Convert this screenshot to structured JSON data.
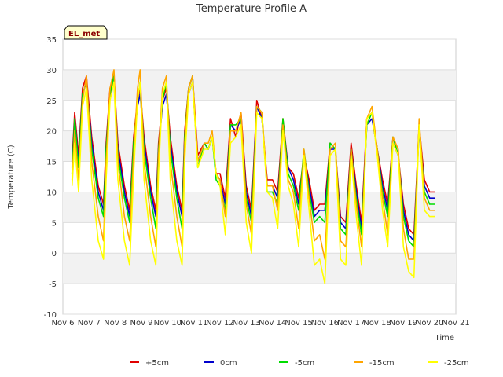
{
  "chart_data": {
    "type": "line",
    "title": "Temperature Profile A",
    "xlabel": "Time",
    "ylabel": "Temperature (C)",
    "badge": "EL_met",
    "ylim": [
      -10,
      35
    ],
    "yticks": [
      -10,
      -5,
      0,
      5,
      10,
      15,
      20,
      25,
      30,
      35
    ],
    "xlim": [
      6,
      21
    ],
    "xticks": [
      {
        "value": 6,
        "label": "Nov 6"
      },
      {
        "value": 7,
        "label": "Nov 7"
      },
      {
        "value": 8,
        "label": "Nov 8"
      },
      {
        "value": 9,
        "label": "Nov 9"
      },
      {
        "value": 10,
        "label": "Nov 10"
      },
      {
        "value": 11,
        "label": "Nov 11"
      },
      {
        "value": 12,
        "label": "Nov 12"
      },
      {
        "value": 13,
        "label": "Nov 13"
      },
      {
        "value": 14,
        "label": "Nov 14"
      },
      {
        "value": 15,
        "label": "Nov 15"
      },
      {
        "value": 16,
        "label": "Nov 16"
      },
      {
        "value": 17,
        "label": "Nov 17"
      },
      {
        "value": 18,
        "label": "Nov 18"
      },
      {
        "value": 19,
        "label": "Nov 19"
      },
      {
        "value": 20,
        "label": "Nov 20"
      },
      {
        "value": 21,
        "label": "Nov 21"
      }
    ],
    "grid": true,
    "legend_position": "bottom",
    "series": [
      {
        "name": "+5cm",
        "color": "#e00000",
        "x": [
          6.35,
          6.45,
          6.6,
          6.75,
          6.9,
          7.1,
          7.35,
          7.55,
          7.65,
          7.8,
          7.95,
          8.1,
          8.35,
          8.55,
          8.7,
          8.85,
          8.95,
          9.1,
          9.35,
          9.55,
          9.65,
          9.8,
          9.95,
          10.1,
          10.35,
          10.55,
          10.65,
          10.8,
          10.95,
          11.15,
          11.4,
          11.55,
          11.7,
          11.85,
          12.0,
          12.2,
          12.4,
          12.6,
          12.8,
          13.0,
          13.2,
          13.4,
          13.6,
          13.8,
          14.0,
          14.2,
          14.4,
          14.6,
          14.8,
          15.0,
          15.2,
          15.4,
          15.6,
          15.8,
          16.0,
          16.2,
          16.4,
          16.6,
          16.8,
          17.0,
          17.2,
          17.4,
          17.6,
          17.8,
          18.0,
          18.2,
          18.4,
          18.6,
          18.8,
          19.0,
          19.2,
          19.4,
          19.6,
          19.8,
          20.0,
          20.2
        ],
        "y": [
          15,
          23,
          16,
          27,
          29,
          19,
          11,
          8,
          18,
          27,
          29,
          18,
          11,
          7,
          19,
          25,
          27,
          19,
          11,
          7,
          18,
          25,
          27,
          19,
          11,
          7,
          20,
          27,
          29,
          16,
          18,
          17,
          19,
          13,
          13,
          9,
          22,
          19,
          23,
          11,
          7,
          25,
          22,
          12,
          12,
          10,
          22,
          14,
          13,
          9,
          16,
          12,
          7,
          8,
          8,
          18,
          17,
          6,
          5,
          18,
          11,
          5,
          22,
          23,
          17,
          12,
          8,
          19,
          16,
          8,
          4,
          3,
          21,
          12,
          10,
          10
        ]
      },
      {
        "name": "0cm",
        "color": "#0000cc",
        "x": [
          6.35,
          6.45,
          6.6,
          6.75,
          6.9,
          7.1,
          7.35,
          7.55,
          7.65,
          7.8,
          7.95,
          8.1,
          8.35,
          8.55,
          8.7,
          8.85,
          8.95,
          9.1,
          9.35,
          9.55,
          9.65,
          9.8,
          9.95,
          10.1,
          10.35,
          10.55,
          10.65,
          10.8,
          10.95,
          11.15,
          11.4,
          11.55,
          11.7,
          11.85,
          12.0,
          12.2,
          12.4,
          12.6,
          12.8,
          13.0,
          13.2,
          13.4,
          13.6,
          13.8,
          14.0,
          14.2,
          14.4,
          14.6,
          14.8,
          15.0,
          15.2,
          15.4,
          15.6,
          15.8,
          16.0,
          16.2,
          16.4,
          16.6,
          16.8,
          17.0,
          17.2,
          17.4,
          17.6,
          17.8,
          18.0,
          18.2,
          18.4,
          18.6,
          18.8,
          19.0,
          19.2,
          19.4,
          19.6,
          19.8,
          20.0,
          20.2
        ],
        "y": [
          14,
          22,
          15,
          26,
          28,
          18,
          10,
          7,
          17,
          26,
          28,
          17,
          10,
          6,
          18,
          24,
          26,
          18,
          10,
          6,
          17,
          24,
          26,
          18,
          10,
          6,
          19,
          26,
          28,
          15,
          18,
          17,
          19,
          13,
          12,
          8,
          21,
          20,
          22,
          10,
          6,
          24,
          22,
          11,
          11,
          9,
          21,
          14,
          12,
          8,
          16,
          11,
          6,
          7,
          7,
          17,
          17,
          5,
          4,
          17,
          10,
          4,
          21,
          22,
          17,
          11,
          7,
          18,
          16,
          7,
          3,
          2,
          20,
          11,
          9,
          9
        ]
      },
      {
        "name": "-5cm",
        "color": "#00dd00",
        "x": [
          6.35,
          6.45,
          6.6,
          6.75,
          6.9,
          7.1,
          7.35,
          7.55,
          7.65,
          7.8,
          7.95,
          8.1,
          8.35,
          8.55,
          8.7,
          8.85,
          8.95,
          9.1,
          9.35,
          9.55,
          9.65,
          9.8,
          9.95,
          10.1,
          10.35,
          10.55,
          10.65,
          10.8,
          10.95,
          11.15,
          11.4,
          11.55,
          11.7,
          11.85,
          12.0,
          12.2,
          12.4,
          12.6,
          12.8,
          13.0,
          13.2,
          13.4,
          13.6,
          13.8,
          14.0,
          14.2,
          14.4,
          14.6,
          14.8,
          15.0,
          15.2,
          15.4,
          15.6,
          15.8,
          16.0,
          16.2,
          16.4,
          16.6,
          16.8,
          17.0,
          17.2,
          17.4,
          17.6,
          17.8,
          18.0,
          18.2,
          18.4,
          18.6,
          18.8,
          19.0,
          19.2,
          19.4,
          19.6,
          19.8,
          20.0,
          20.2
        ],
        "y": [
          13,
          22,
          14,
          26,
          28,
          17,
          9,
          6,
          17,
          26,
          29,
          16,
          9,
          5,
          18,
          25,
          28,
          17,
          9,
          4,
          17,
          25,
          28,
          17,
          9,
          4,
          19,
          27,
          29,
          14,
          18,
          17,
          19,
          12,
          11,
          7,
          21,
          21,
          22,
          9,
          5,
          24,
          23,
          10,
          10,
          8,
          22,
          13,
          11,
          7,
          17,
          10,
          5,
          6,
          5,
          18,
          17,
          4,
          3,
          17,
          9,
          3,
          21,
          23,
          17,
          10,
          6,
          19,
          16,
          6,
          2,
          1,
          21,
          10,
          8,
          8
        ]
      },
      {
        "name": "-15cm",
        "color": "#ffa500",
        "x": [
          6.35,
          6.45,
          6.6,
          6.75,
          6.9,
          7.1,
          7.35,
          7.55,
          7.65,
          7.8,
          7.95,
          8.1,
          8.35,
          8.55,
          8.7,
          8.85,
          8.95,
          9.1,
          9.35,
          9.55,
          9.65,
          9.8,
          9.95,
          10.1,
          10.35,
          10.55,
          10.65,
          10.8,
          10.95,
          11.15,
          11.4,
          11.55,
          11.7,
          11.85,
          12.0,
          12.2,
          12.4,
          12.6,
          12.8,
          13.0,
          13.2,
          13.4,
          13.6,
          13.8,
          14.0,
          14.2,
          14.4,
          14.6,
          14.8,
          15.0,
          15.2,
          15.4,
          15.6,
          15.8,
          16.0,
          16.2,
          16.4,
          16.6,
          16.8,
          17.0,
          17.2,
          17.4,
          17.6,
          17.8,
          18.0,
          18.2,
          18.4,
          18.6,
          18.8,
          19.0,
          19.2,
          19.4,
          19.6,
          19.8,
          20.0,
          20.2
        ],
        "y": [
          12,
          20,
          12,
          25,
          29,
          15,
          6,
          2,
          15,
          27,
          30,
          15,
          6,
          2,
          16,
          27,
          30,
          15,
          6,
          1,
          16,
          27,
          29,
          15,
          6,
          1,
          18,
          27,
          29,
          15,
          18,
          18,
          20,
          13,
          12,
          6,
          20,
          20,
          23,
          8,
          3,
          24,
          23,
          11,
          11,
          7,
          21,
          12,
          10,
          4,
          17,
          9,
          2,
          3,
          -1,
          17,
          18,
          2,
          1,
          17,
          8,
          1,
          22,
          24,
          17,
          9,
          3,
          19,
          17,
          4,
          -1,
          -1,
          22,
          9,
          7,
          7
        ]
      },
      {
        "name": "-25cm",
        "color": "#ffff00",
        "x": [
          6.35,
          6.45,
          6.6,
          6.75,
          6.9,
          7.1,
          7.35,
          7.55,
          7.65,
          7.8,
          7.95,
          8.1,
          8.35,
          8.55,
          8.7,
          8.85,
          8.95,
          9.1,
          9.35,
          9.55,
          9.65,
          9.8,
          9.95,
          10.1,
          10.35,
          10.55,
          10.65,
          10.8,
          10.95,
          11.15,
          11.4,
          11.55,
          11.7,
          11.85,
          12.0,
          12.2,
          12.4,
          12.6,
          12.8,
          13.0,
          13.2,
          13.4,
          13.6,
          13.8,
          14.0,
          14.2,
          14.4,
          14.6,
          14.8,
          15.0,
          15.2,
          15.4,
          15.6,
          15.8,
          16.0,
          16.2,
          16.4,
          16.6,
          16.8,
          17.0,
          17.2,
          17.4,
          17.6,
          17.8,
          18.0,
          18.2,
          18.4,
          18.6,
          18.8,
          19.0,
          19.2,
          19.4,
          19.6,
          19.8,
          20.0,
          20.2
        ],
        "y": [
          11,
          18,
          10,
          24,
          27,
          12,
          2,
          -1,
          12,
          25,
          28,
          12,
          2,
          -2,
          13,
          25,
          28,
          12,
          2,
          -2,
          13,
          26,
          28,
          12,
          2,
          -2,
          15,
          26,
          28,
          14,
          17,
          17,
          19,
          13,
          11,
          3,
          18,
          19,
          21,
          5,
          0,
          23,
          22,
          10,
          9,
          4,
          20,
          11,
          8,
          1,
          16,
          7,
          -2,
          -1,
          -5,
          16,
          17,
          -1,
          -2,
          16,
          6,
          -2,
          22,
          23,
          16,
          7,
          1,
          18,
          16,
          1,
          -3,
          -4,
          21,
          7,
          6,
          6
        ]
      }
    ]
  }
}
